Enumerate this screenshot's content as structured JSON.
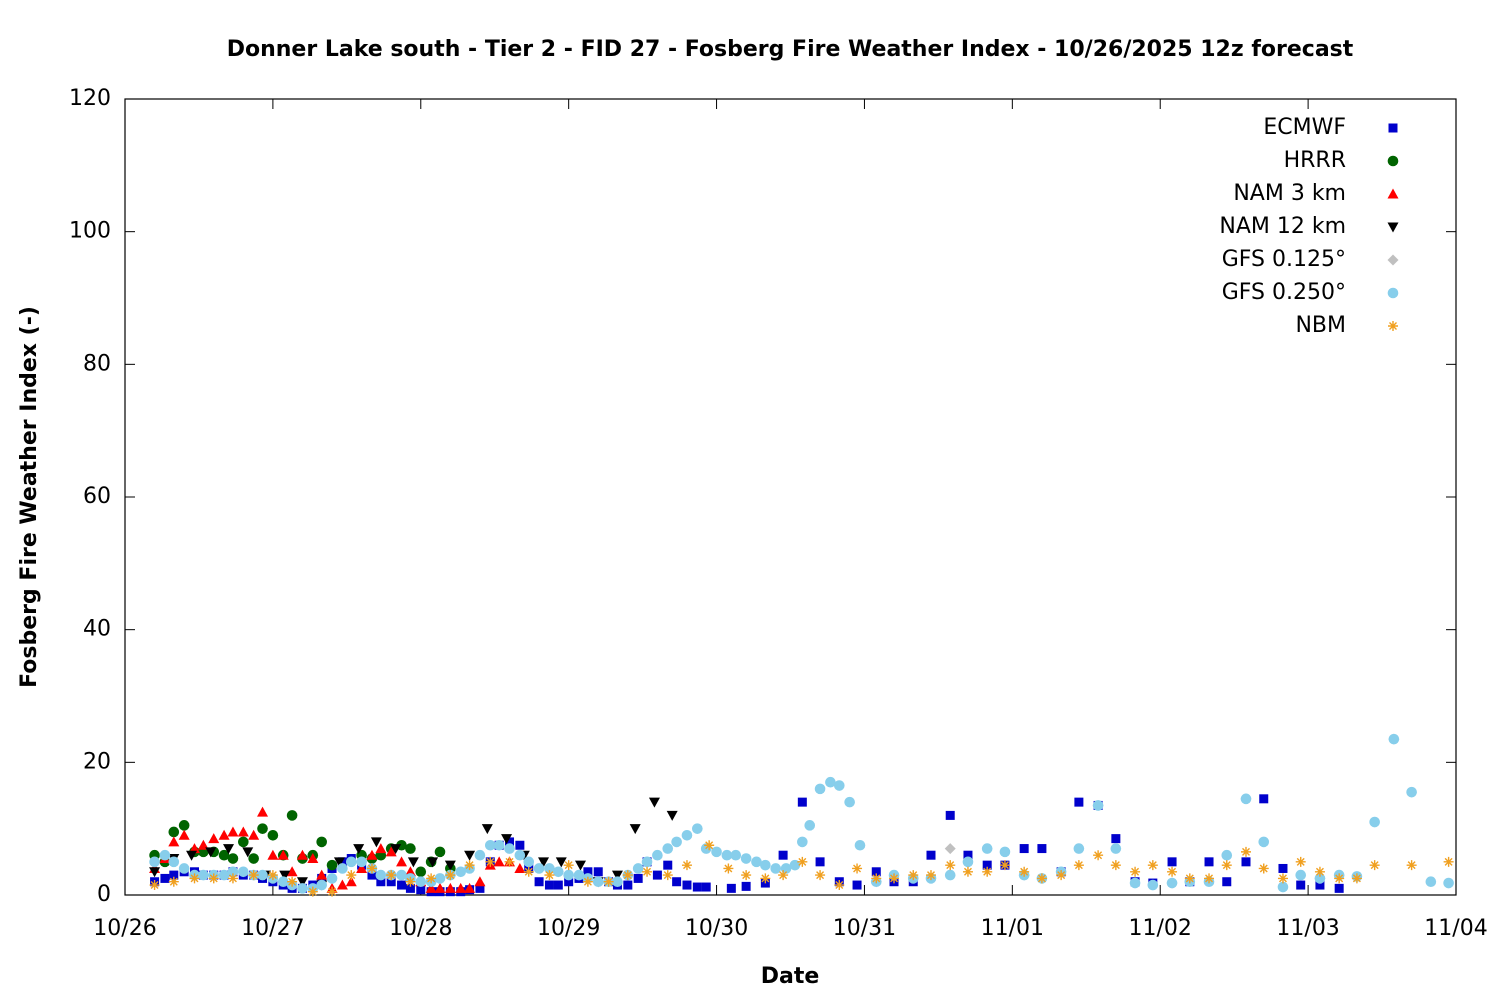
{
  "chart_data": {
    "type": "scatter",
    "title": "Donner Lake south - Tier 2 - FID 27 - Fosberg Fire Weather Index - 10/26/2025 12z forecast",
    "xlabel": "Date",
    "ylabel": "Fosberg Fire Weather Index (-)",
    "xlim": [
      0,
      9
    ],
    "ylim": [
      0,
      120
    ],
    "xticks": [
      {
        "value": 0,
        "label": "10/26"
      },
      {
        "value": 1,
        "label": "10/27"
      },
      {
        "value": 2,
        "label": "10/28"
      },
      {
        "value": 3,
        "label": "10/29"
      },
      {
        "value": 4,
        "label": "10/30"
      },
      {
        "value": 5,
        "label": "10/31"
      },
      {
        "value": 6,
        "label": "11/01"
      },
      {
        "value": 7,
        "label": "11/02"
      },
      {
        "value": 8,
        "label": "11/03"
      },
      {
        "value": 9,
        "label": "11/04"
      }
    ],
    "yticks": [
      0,
      20,
      40,
      60,
      80,
      100,
      120
    ],
    "grid": false,
    "legend": "upper right",
    "series": [
      {
        "name": "ECMWF",
        "color": "#0000cc",
        "marker": "square",
        "x": [
          0.2,
          0.27,
          0.33,
          0.4,
          0.47,
          0.53,
          0.6,
          0.67,
          0.73,
          0.8,
          0.87,
          0.93,
          1.0,
          1.07,
          1.13,
          1.2,
          1.27,
          1.33,
          1.4,
          1.47,
          1.53,
          1.6,
          1.67,
          1.73,
          1.8,
          1.87,
          1.93,
          2.0,
          2.07,
          2.13,
          2.2,
          2.27,
          2.33,
          2.4,
          2.47,
          2.53,
          2.6,
          2.67,
          2.73,
          2.8,
          2.87,
          2.93,
          3.0,
          3.07,
          3.13,
          3.2,
          3.27,
          3.33,
          3.4,
          3.47,
          3.53,
          3.6,
          3.67,
          3.73,
          3.8,
          3.87,
          3.93,
          4.1,
          4.2,
          4.33,
          4.45,
          4.58,
          4.7,
          4.83,
          4.95,
          5.08,
          5.2,
          5.33,
          5.45,
          5.58,
          5.7,
          5.83,
          5.95,
          6.08,
          6.2,
          6.33,
          6.45,
          6.58,
          6.7,
          6.83,
          6.95,
          7.08,
          7.2,
          7.33,
          7.45,
          7.58,
          7.7,
          7.83,
          7.95,
          8.08,
          8.21
        ],
        "values": [
          2,
          2.5,
          3,
          3.5,
          3.5,
          3,
          3,
          3,
          3.5,
          3,
          3,
          2.5,
          2,
          1.5,
          1,
          1,
          1.5,
          2.5,
          4,
          5,
          5.5,
          4.5,
          3,
          2,
          2,
          1.5,
          1,
          0.8,
          0.5,
          0.5,
          0.5,
          0.5,
          0.8,
          1,
          5,
          7.5,
          8,
          7.5,
          4,
          2,
          1.5,
          1.5,
          2,
          2.5,
          3.5,
          3.5,
          2,
          1.5,
          1.5,
          2.5,
          5,
          3,
          4.5,
          2,
          1.5,
          1.2,
          1.2,
          1,
          1.3,
          1.8,
          6,
          14,
          5,
          2,
          1.5,
          3.5,
          2,
          2,
          6,
          12,
          6,
          4.5,
          4.5,
          7,
          7,
          3.5,
          14,
          13.5,
          8.5,
          2,
          1.8,
          5,
          2,
          5,
          2,
          5,
          14.5,
          4,
          1.5,
          1.5,
          1
        ]
      },
      {
        "name": "HRRR",
        "color": "#006400",
        "marker": "circle",
        "x": [
          0.2,
          0.27,
          0.33,
          0.4,
          0.47,
          0.53,
          0.6,
          0.67,
          0.73,
          0.8,
          0.87,
          0.93,
          1.0,
          1.07,
          1.13,
          1.2,
          1.27,
          1.33,
          1.4,
          1.6,
          1.67,
          1.73,
          1.8,
          1.87,
          1.93,
          2.0,
          2.07,
          2.13,
          2.2
        ],
        "values": [
          6,
          5,
          9.5,
          10.5,
          6.5,
          6.5,
          6.5,
          6,
          5.5,
          8,
          5.5,
          10,
          9,
          6,
          12,
          5.5,
          6,
          8,
          4.5,
          6,
          5.5,
          6,
          7,
          7.5,
          7,
          3.5,
          5,
          6.5,
          4
        ]
      },
      {
        "name": "NAM 3 km",
        "color": "#ff0000",
        "marker": "triangle-up",
        "x": [
          0.2,
          0.27,
          0.33,
          0.4,
          0.47,
          0.53,
          0.6,
          0.67,
          0.73,
          0.8,
          0.87,
          0.93,
          1.0,
          1.07,
          1.13,
          1.2,
          1.27,
          1.33,
          1.4,
          1.47,
          1.53,
          1.6,
          1.67,
          1.73,
          1.8,
          1.87,
          1.93,
          2.0,
          2.07,
          2.13,
          2.2,
          2.27,
          2.33,
          2.4,
          2.47,
          2.53,
          2.6,
          2.67
        ],
        "values": [
          4,
          5.5,
          8,
          9,
          7,
          7.5,
          8.5,
          9,
          9.5,
          9.5,
          9,
          12.5,
          6,
          6,
          3.5,
          6,
          5.5,
          3,
          1,
          1.5,
          2,
          4,
          6,
          7,
          6.5,
          5,
          3.5,
          2,
          1,
          1,
          1,
          1,
          1,
          2,
          4.5,
          5,
          5,
          4
        ]
      },
      {
        "name": "NAM 12 km",
        "color": "#000000",
        "marker": "triangle-down",
        "x": [
          0.2,
          0.33,
          0.45,
          0.58,
          0.7,
          0.83,
          0.95,
          1.08,
          1.2,
          1.33,
          1.45,
          1.58,
          1.7,
          1.83,
          1.95,
          2.08,
          2.2,
          2.33,
          2.45,
          2.58,
          2.7,
          2.83,
          2.95,
          3.08,
          3.2,
          3.33,
          3.45,
          3.58,
          3.7
        ],
        "values": [
          3.5,
          5.5,
          6,
          6.5,
          7,
          6.5,
          3,
          3,
          2,
          1.5,
          5,
          7,
          8,
          7,
          5,
          5,
          4.5,
          6,
          10,
          8.5,
          6,
          5,
          5,
          4.5,
          2,
          3,
          10,
          14,
          12
        ]
      },
      {
        "name": "GFS 0.125°",
        "color": "#c0c0c0",
        "marker": "diamond",
        "x": [
          5.08,
          5.58,
          6.08,
          6.58,
          7.08,
          7.58,
          8.08,
          8.58
        ],
        "values": [
          2,
          7,
          3,
          13.5,
          1.8,
          14.5,
          2.5,
          23.5
        ]
      },
      {
        "name": "GFS 0.250°",
        "color": "#87ceeb",
        "marker": "circle",
        "x": [
          0.2,
          0.27,
          0.33,
          0.4,
          0.47,
          0.53,
          0.6,
          0.67,
          0.73,
          0.8,
          0.87,
          0.93,
          1.0,
          1.07,
          1.13,
          1.2,
          1.27,
          1.33,
          1.4,
          1.47,
          1.53,
          1.6,
          1.67,
          1.73,
          1.8,
          1.87,
          1.93,
          2.0,
          2.07,
          2.13,
          2.2,
          2.27,
          2.33,
          2.4,
          2.47,
          2.53,
          2.6,
          2.67,
          2.73,
          2.8,
          2.87,
          2.93,
          3.0,
          3.07,
          3.13,
          3.2,
          3.27,
          3.33,
          3.4,
          3.47,
          3.53,
          3.6,
          3.67,
          3.73,
          3.8,
          3.87,
          3.93,
          4.0,
          4.07,
          4.13,
          4.2,
          4.27,
          4.33,
          4.4,
          4.47,
          4.53,
          4.58,
          4.63,
          4.7,
          4.77,
          4.83,
          4.9,
          4.97,
          5.08,
          5.2,
          5.33,
          5.45,
          5.58,
          5.7,
          5.83,
          5.95,
          6.08,
          6.2,
          6.33,
          6.45,
          6.58,
          6.7,
          6.83,
          6.95,
          7.08,
          7.2,
          7.33,
          7.45,
          7.58,
          7.7,
          7.83,
          7.95,
          8.08,
          8.21,
          8.33,
          8.45,
          8.58,
          8.7,
          8.83,
          8.95
        ],
        "values": [
          5,
          6,
          5,
          4,
          3,
          3,
          3,
          3,
          3.5,
          3.5,
          3,
          3,
          2.5,
          2,
          1.5,
          1,
          1,
          1.5,
          2.5,
          4,
          5,
          5,
          4,
          3,
          3,
          3,
          2.5,
          2,
          2,
          2.5,
          3,
          3.5,
          4,
          6,
          7.5,
          7.5,
          7,
          6,
          5,
          4,
          4,
          3.5,
          3,
          3,
          2.5,
          2,
          2,
          2,
          3,
          4,
          5,
          6,
          7,
          8,
          9,
          10,
          7,
          6.5,
          6,
          6,
          5.5,
          5,
          4.5,
          4,
          4,
          4.5,
          8,
          10.5,
          16,
          17,
          16.5,
          14,
          7.5,
          2,
          3,
          2.5,
          2.5,
          3,
          5,
          7,
          6.5,
          3,
          2.5,
          3.5,
          7,
          13.5,
          7,
          1.8,
          1.5,
          1.8,
          2,
          2,
          6,
          14.5,
          8,
          1.2,
          3,
          2.5,
          3,
          2.8,
          11,
          23.5,
          15.5,
          2,
          1.8
        ]
      },
      {
        "name": "NBM",
        "color": "#f0a020",
        "marker": "star",
        "x": [
          0.2,
          0.33,
          0.47,
          0.6,
          0.73,
          0.87,
          1.0,
          1.13,
          1.27,
          1.4,
          1.53,
          1.67,
          1.8,
          1.93,
          2.07,
          2.2,
          2.33,
          2.47,
          2.6,
          2.73,
          2.87,
          3.0,
          3.13,
          3.27,
          3.4,
          3.53,
          3.67,
          3.8,
          3.95,
          4.08,
          4.2,
          4.33,
          4.45,
          4.58,
          4.7,
          4.83,
          4.95,
          5.08,
          5.2,
          5.33,
          5.45,
          5.58,
          5.7,
          5.83,
          5.95,
          6.08,
          6.2,
          6.33,
          6.45,
          6.58,
          6.7,
          6.83,
          6.95,
          7.08,
          7.2,
          7.33,
          7.45,
          7.58,
          7.7,
          7.83,
          7.95,
          8.08,
          8.21,
          8.33,
          8.45,
          8.7,
          8.95
        ],
        "values": [
          1.5,
          2,
          2.5,
          2.5,
          2.5,
          3,
          3,
          2,
          0.5,
          0.5,
          3,
          4,
          3,
          2,
          2.5,
          3,
          4.5,
          5,
          5,
          3.5,
          3,
          4.5,
          2,
          2,
          3,
          3.5,
          3,
          4.5,
          7.5,
          4,
          3,
          2.5,
          3,
          5,
          3,
          1.5,
          4,
          2.5,
          2.5,
          3,
          3,
          4.5,
          3.5,
          3.5,
          4.5,
          3.5,
          2.5,
          3,
          4.5,
          6,
          4.5,
          3.5,
          4.5,
          3.5,
          2.5,
          2.5,
          4.5,
          6.5,
          4,
          2.5,
          5,
          3.5,
          2.5,
          2.5,
          4.5,
          4.5,
          5
        ]
      }
    ]
  }
}
